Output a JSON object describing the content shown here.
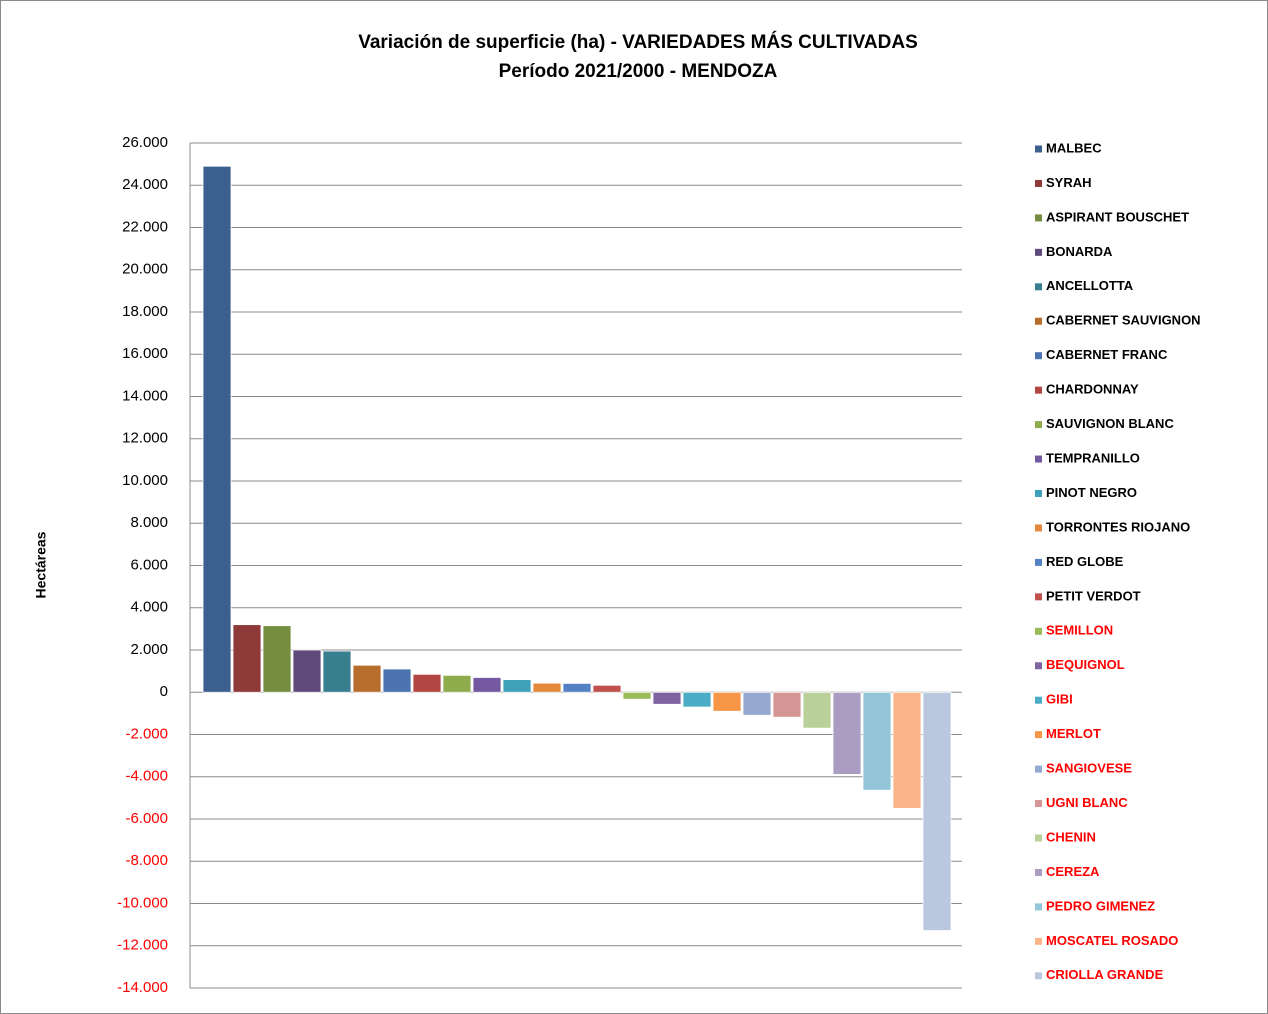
{
  "chart_data": {
    "type": "bar",
    "title": "Variación de superficie (ha) - VARIEDADES MÁS CULTIVADAS",
    "subtitle": "Período 2021/2000 - MENDOZA",
    "y_label": "Hectáreas",
    "categories": [
      "MALBEC",
      "SYRAH",
      "ASPIRANT BOUSCHET",
      "BONARDA",
      "ANCELLOTTA",
      "CABERNET SAUVIGNON",
      "CABERNET FRANC",
      "CHARDONNAY",
      "SAUVIGNON BLANC",
      "TEMPRANILLO",
      "PINOT NEGRO",
      "TORRONTES RIOJANO",
      "RED GLOBE",
      "PETIT VERDOT",
      "SEMILLON",
      "BEQUIGNOL",
      "GIBI",
      "MERLOT",
      "SANGIOVESE",
      "UGNI BLANC",
      "CHENIN",
      "CEREZA",
      "PEDRO GIMENEZ",
      "MOSCATEL ROSADO",
      "CRIOLLA GRANDE"
    ],
    "values": [
      24900,
      3200,
      3150,
      2000,
      1950,
      1280,
      1100,
      850,
      800,
      700,
      600,
      430,
      420,
      330,
      -330,
      -570,
      -700,
      -900,
      -1090,
      -1180,
      -1700,
      -3890,
      -4640,
      -5500,
      -11280
    ],
    "colors": [
      "#3b5f8f",
      "#8e3a38",
      "#748d3f",
      "#5f4a7b",
      "#377f8f",
      "#b76e2d",
      "#4a73b0",
      "#b24642",
      "#8eac4c",
      "#7459a0",
      "#3ea1b7",
      "#e4883b",
      "#5480c4",
      "#c0504d",
      "#9bbb59",
      "#8064a2",
      "#4bacc6",
      "#f79646",
      "#95a9d0",
      "#d49594",
      "#bad09a",
      "#ab9cc1",
      "#92c6d8",
      "#f9b48a",
      "#b9c7df"
    ],
    "ylim": [
      -14000,
      26000
    ],
    "yticks": [
      {
        "value": -14000,
        "label": "-14.000"
      },
      {
        "value": -12000,
        "label": "-12.000"
      },
      {
        "value": -10000,
        "label": "-10.000"
      },
      {
        "value": -8000,
        "label": "-8.000"
      },
      {
        "value": -6000,
        "label": "-6.000"
      },
      {
        "value": -4000,
        "label": "-4.000"
      },
      {
        "value": -2000,
        "label": "-2.000"
      },
      0,
      {
        "value": 2000,
        "label": "2.000"
      },
      {
        "value": 4000,
        "label": "4.000"
      },
      {
        "value": 6000,
        "label": "6.000"
      },
      {
        "value": 8000,
        "label": "8.000"
      },
      {
        "value": 10000,
        "label": "10.000"
      },
      {
        "value": 12000,
        "label": "12.000"
      },
      {
        "value": 14000,
        "label": "14.000"
      },
      {
        "value": 16000,
        "label": "16.000"
      },
      {
        "value": 18000,
        "label": "18.000"
      },
      {
        "value": 20000,
        "label": "20.000"
      },
      {
        "value": 22000,
        "label": "22.000"
      },
      {
        "value": 24000,
        "label": "24.000"
      },
      {
        "value": 26000,
        "label": "26.000"
      }
    ],
    "grid": true,
    "legend": "right"
  }
}
